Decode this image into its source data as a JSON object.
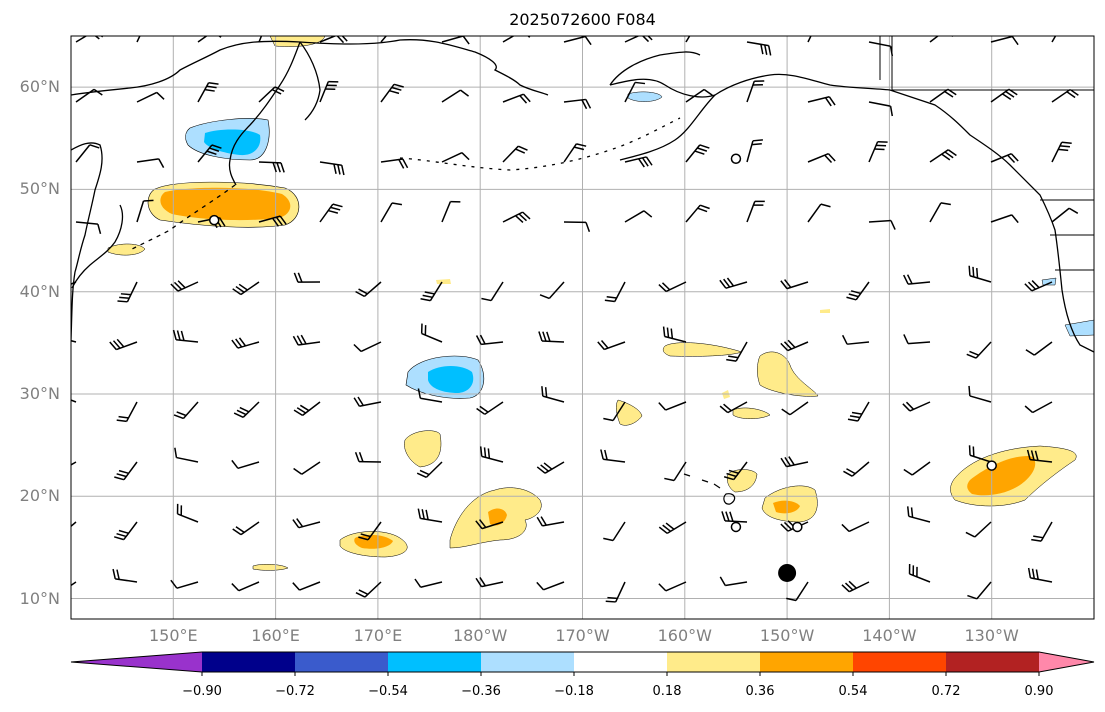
{
  "title": "2025072600 F084",
  "map": {
    "lon_range": [
      140,
      240
    ],
    "lat_range": [
      8,
      65
    ],
    "lat_ticks": [
      {
        "lat": 60,
        "label": "60°N"
      },
      {
        "lat": 50,
        "label": "50°N"
      },
      {
        "lat": 40,
        "label": "40°N"
      },
      {
        "lat": 30,
        "label": "30°N"
      },
      {
        "lat": 20,
        "label": "20°N"
      },
      {
        "lat": 10,
        "label": "10°N"
      }
    ],
    "lon_ticks": [
      {
        "lon": 150,
        "label": "150°E"
      },
      {
        "lon": 160,
        "label": "160°E"
      },
      {
        "lon": 170,
        "label": "170°E"
      },
      {
        "lon": 180,
        "label": "180°W"
      },
      {
        "lon": 190,
        "label": "170°W"
      },
      {
        "lon": 200,
        "label": "160°W"
      },
      {
        "lon": 210,
        "label": "150°W"
      },
      {
        "lon": 220,
        "label": "140°W"
      },
      {
        "lon": 230,
        "label": "130°W"
      }
    ]
  },
  "colorbar": {
    "colors": [
      "#9932CC",
      "#00008B",
      "#3A5BCC",
      "#00BFFF",
      "#ADDFFF",
      "#FFFFFF",
      "#FFEB8A",
      "#FFA500",
      "#FF4500",
      "#B22222",
      "#FF88AA"
    ],
    "labels": [
      "−0.90",
      "−0.72",
      "−0.54",
      "−0.36",
      "−0.18",
      "0.18",
      "0.36",
      "0.54",
      "0.72",
      "0.90"
    ]
  },
  "markers": {
    "filled_dot": {
      "lon": 210,
      "lat": 12.5
    },
    "open_circles": [
      {
        "lon": 205.0,
        "lat": 53.0
      },
      {
        "lon": 154,
        "lat": 47
      },
      {
        "lon": 205,
        "lat": 17
      },
      {
        "lon": 211,
        "lat": 17
      },
      {
        "lon": 230,
        "lat": 23
      }
    ]
  },
  "shaded_regions": [
    {
      "name": "kamchatka-positive",
      "level": "0.18",
      "color": "#FFEB8A"
    },
    {
      "name": "kamchatka-strong",
      "level": "0.36",
      "color": "#FFA500"
    },
    {
      "name": "okhotsk-negative",
      "level": "-0.18",
      "color": "#ADDFFF"
    },
    {
      "name": "okhotsk-strong",
      "level": "-0.36",
      "color": "#00BFFF"
    }
  ]
}
